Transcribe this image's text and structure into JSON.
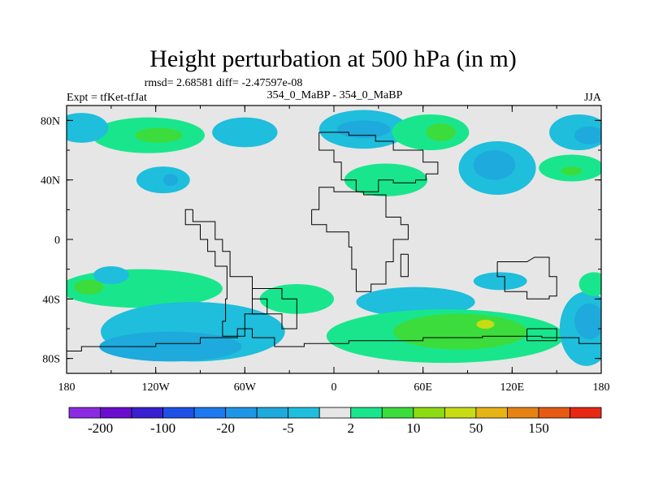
{
  "header": {
    "title": "Height perturbation at 500 hPa (in m)",
    "stats": "rmsd= 2.68581 diff= -2.47597e-08",
    "left_label": "Expt = tfKet-tfJat",
    "center_label": "354_0_MaBP - 354_0_MaBP",
    "right_label": "JJA"
  },
  "chart_data": {
    "type": "heatmap",
    "title": "Height perturbation at 500 hPa (in m)",
    "xlabel": "",
    "ylabel": "",
    "xlim": [
      -180,
      180
    ],
    "ylim": [
      -90,
      90
    ],
    "x_ticks": [
      {
        "value": -180,
        "label": "180"
      },
      {
        "value": -120,
        "label": "120W"
      },
      {
        "value": -60,
        "label": "60W"
      },
      {
        "value": 0,
        "label": "0"
      },
      {
        "value": 60,
        "label": "60E"
      },
      {
        "value": 120,
        "label": "120E"
      },
      {
        "value": 180,
        "label": "180"
      }
    ],
    "y_ticks": [
      {
        "value": 80,
        "label": "80N"
      },
      {
        "value": 40,
        "label": "40N"
      },
      {
        "value": 0,
        "label": "0"
      },
      {
        "value": -40,
        "label": "40S"
      },
      {
        "value": -80,
        "label": "80S"
      }
    ],
    "colorbar": {
      "colors": [
        "#8a2be2",
        "#6a0dcd",
        "#3a1fd0",
        "#1e50e6",
        "#1e78f0",
        "#1e96e6",
        "#1eaadc",
        "#1ebedc",
        "#e6e6e6",
        "#19e68c",
        "#3cdc3c",
        "#8cdc14",
        "#c8dc14",
        "#e6b414",
        "#e68214",
        "#e65a14",
        "#e62814"
      ],
      "labels": [
        "-200",
        "-100",
        "-20",
        "-5",
        "2",
        "10",
        "50",
        "150"
      ]
    },
    "regions": [
      {
        "lon": -125,
        "lat": 70,
        "rx": 38,
        "ry": 12,
        "level": "pos_light"
      },
      {
        "lon": -118,
        "lat": 70,
        "rx": 16,
        "ry": 5,
        "level": "pos_mid"
      },
      {
        "lon": -170,
        "lat": 75,
        "rx": 18,
        "ry": 10,
        "level": "neg_light"
      },
      {
        "lon": -60,
        "lat": 72,
        "rx": 22,
        "ry": 10,
        "level": "neg_light"
      },
      {
        "lon": -115,
        "lat": 40,
        "rx": 18,
        "ry": 9,
        "level": "neg_light"
      },
      {
        "lon": -110,
        "lat": 40,
        "rx": 5,
        "ry": 4,
        "level": "neg_mid"
      },
      {
        "lon": 20,
        "lat": 74,
        "rx": 30,
        "ry": 13,
        "level": "neg_light"
      },
      {
        "lon": 20,
        "lat": 74,
        "rx": 18,
        "ry": 6,
        "level": "neg_mid"
      },
      {
        "lon": 65,
        "lat": 72,
        "rx": 26,
        "ry": 12,
        "level": "pos_light"
      },
      {
        "lon": 72,
        "lat": 72,
        "rx": 10,
        "ry": 6,
        "level": "pos_mid"
      },
      {
        "lon": 35,
        "lat": 40,
        "rx": 28,
        "ry": 11,
        "level": "pos_light"
      },
      {
        "lon": 110,
        "lat": 48,
        "rx": 26,
        "ry": 18,
        "level": "neg_light"
      },
      {
        "lon": 108,
        "lat": 50,
        "rx": 14,
        "ry": 10,
        "level": "neg_mid"
      },
      {
        "lon": 165,
        "lat": 72,
        "rx": 20,
        "ry": 12,
        "level": "neg_light"
      },
      {
        "lon": 172,
        "lat": 70,
        "rx": 10,
        "ry": 6,
        "level": "neg_mid"
      },
      {
        "lon": 160,
        "lat": 48,
        "rx": 22,
        "ry": 9,
        "level": "pos_light"
      },
      {
        "lon": 160,
        "lat": 46,
        "rx": 7,
        "ry": 3,
        "level": "pos_mid"
      },
      {
        "lon": -130,
        "lat": -33,
        "rx": 55,
        "ry": 13,
        "level": "pos_light"
      },
      {
        "lon": -165,
        "lat": -32,
        "rx": 10,
        "ry": 5,
        "level": "pos_mid"
      },
      {
        "lon": -150,
        "lat": -24,
        "rx": 12,
        "ry": 6,
        "level": "neg_light"
      },
      {
        "lon": -95,
        "lat": -62,
        "rx": 62,
        "ry": 20,
        "level": "neg_light"
      },
      {
        "lon": -110,
        "lat": -72,
        "rx": 48,
        "ry": 10,
        "level": "neg_mid"
      },
      {
        "lon": -25,
        "lat": -40,
        "rx": 25,
        "ry": 10,
        "level": "pos_light"
      },
      {
        "lon": 55,
        "lat": -42,
        "rx": 40,
        "ry": 10,
        "level": "neg_light"
      },
      {
        "lon": 75,
        "lat": -65,
        "rx": 80,
        "ry": 18,
        "level": "pos_light"
      },
      {
        "lon": 85,
        "lat": -62,
        "rx": 45,
        "ry": 12,
        "level": "pos_mid"
      },
      {
        "lon": 102,
        "lat": -57,
        "rx": 6,
        "ry": 3,
        "level": "pos_strong"
      },
      {
        "lon": 112,
        "lat": -28,
        "rx": 18,
        "ry": 6,
        "level": "neg_light"
      },
      {
        "lon": 170,
        "lat": -60,
        "rx": 18,
        "ry": 25,
        "level": "neg_light"
      },
      {
        "lon": 172,
        "lat": -55,
        "rx": 10,
        "ry": 12,
        "level": "neg_mid"
      },
      {
        "lon": 175,
        "lat": -30,
        "rx": 10,
        "ry": 8,
        "level": "pos_light"
      }
    ],
    "level_colors": {
      "neg_light": "#1ebedc",
      "neg_mid": "#1eaadc",
      "pos_light": "#19e68c",
      "pos_mid": "#3cdc3c",
      "pos_strong": "#c8dc14"
    },
    "coastlines": [
      [
        [
          -10,
          72
        ],
        [
          -10,
          60
        ],
        [
          0,
          60
        ],
        [
          0,
          52
        ],
        [
          5,
          52
        ],
        [
          5,
          40
        ],
        [
          15,
          40
        ],
        [
          15,
          32
        ],
        [
          30,
          32
        ],
        [
          30,
          40
        ],
        [
          40,
          40
        ],
        [
          40,
          38
        ],
        [
          55,
          38
        ],
        [
          55,
          40
        ],
        [
          62,
          40
        ],
        [
          62,
          44
        ],
        [
          70,
          44
        ],
        [
          70,
          52
        ],
        [
          60,
          52
        ],
        [
          60,
          60
        ],
        [
          40,
          60
        ],
        [
          40,
          66
        ],
        [
          28,
          66
        ],
        [
          28,
          70
        ],
        [
          10,
          70
        ],
        [
          10,
          72
        ],
        [
          -10,
          72
        ]
      ],
      [
        [
          -95,
          20
        ],
        [
          -95,
          12
        ],
        [
          -80,
          12
        ],
        [
          -80,
          0
        ],
        [
          -75,
          0
        ],
        [
          -75,
          -8
        ],
        [
          -70,
          -8
        ],
        [
          -70,
          -25
        ],
        [
          -55,
          -25
        ],
        [
          -55,
          -40
        ],
        [
          -45,
          -40
        ],
        [
          -45,
          -50
        ],
        [
          -60,
          -50
        ],
        [
          -60,
          -65
        ],
        [
          -75,
          -65
        ],
        [
          -75,
          -55
        ],
        [
          -73,
          -55
        ],
        [
          -73,
          -40
        ],
        [
          -72,
          -40
        ],
        [
          -72,
          -18
        ],
        [
          -80,
          -18
        ],
        [
          -80,
          -8
        ],
        [
          -85,
          -8
        ],
        [
          -85,
          0
        ],
        [
          -90,
          0
        ],
        [
          -90,
          10
        ],
        [
          -100,
          10
        ],
        [
          -100,
          20
        ],
        [
          -95,
          20
        ]
      ],
      [
        [
          -15,
          20
        ],
        [
          -15,
          10
        ],
        [
          -5,
          10
        ],
        [
          -5,
          5
        ],
        [
          10,
          5
        ],
        [
          10,
          -5
        ],
        [
          12,
          -5
        ],
        [
          12,
          -20
        ],
        [
          15,
          -20
        ],
        [
          15,
          -35
        ],
        [
          25,
          -35
        ],
        [
          25,
          -30
        ],
        [
          35,
          -30
        ],
        [
          35,
          -15
        ],
        [
          40,
          -15
        ],
        [
          40,
          0
        ],
        [
          50,
          0
        ],
        [
          50,
          10
        ],
        [
          45,
          10
        ],
        [
          45,
          15
        ],
        [
          35,
          15
        ],
        [
          35,
          30
        ],
        [
          20,
          30
        ],
        [
          20,
          32
        ],
        [
          0,
          32
        ],
        [
          0,
          35
        ],
        [
          -10,
          35
        ],
        [
          -10,
          20
        ],
        [
          -15,
          20
        ]
      ],
      [
        [
          110,
          -15
        ],
        [
          110,
          -25
        ],
        [
          115,
          -25
        ],
        [
          115,
          -35
        ],
        [
          130,
          -35
        ],
        [
          130,
          -40
        ],
        [
          145,
          -40
        ],
        [
          145,
          -38
        ],
        [
          150,
          -38
        ],
        [
          150,
          -25
        ],
        [
          145,
          -25
        ],
        [
          145,
          -12
        ],
        [
          135,
          -12
        ],
        [
          130,
          -15
        ],
        [
          120,
          -15
        ],
        [
          110,
          -15
        ]
      ],
      [
        [
          -180,
          -75
        ],
        [
          -170,
          -75
        ],
        [
          -170,
          -72
        ],
        [
          -120,
          -72
        ],
        [
          -120,
          -70
        ],
        [
          -90,
          -70
        ],
        [
          -90,
          -66
        ],
        [
          -65,
          -66
        ],
        [
          -65,
          -60
        ],
        [
          -55,
          -60
        ],
        [
          -55,
          -66
        ],
        [
          -40,
          -66
        ],
        [
          -40,
          -72
        ],
        [
          -20,
          -72
        ],
        [
          -20,
          -70
        ],
        [
          10,
          -70
        ],
        [
          10,
          -68
        ],
        [
          60,
          -68
        ],
        [
          60,
          -66
        ],
        [
          100,
          -66
        ],
        [
          100,
          -65
        ],
        [
          140,
          -65
        ],
        [
          140,
          -66
        ],
        [
          165,
          -66
        ],
        [
          165,
          -70
        ],
        [
          180,
          -70
        ]
      ],
      [
        [
          -55,
          -33
        ],
        [
          -55,
          -50
        ],
        [
          -35,
          -50
        ],
        [
          -35,
          -60
        ],
        [
          -25,
          -60
        ],
        [
          -25,
          -40
        ],
        [
          -35,
          -40
        ],
        [
          -35,
          -33
        ],
        [
          -55,
          -33
        ]
      ],
      [
        [
          50,
          -10
        ],
        [
          50,
          -25
        ],
        [
          45,
          -25
        ],
        [
          45,
          -10
        ],
        [
          50,
          -10
        ]
      ],
      [
        [
          130,
          -60
        ],
        [
          130,
          -68
        ],
        [
          150,
          -68
        ],
        [
          150,
          -60
        ],
        [
          130,
          -60
        ]
      ]
    ]
  }
}
